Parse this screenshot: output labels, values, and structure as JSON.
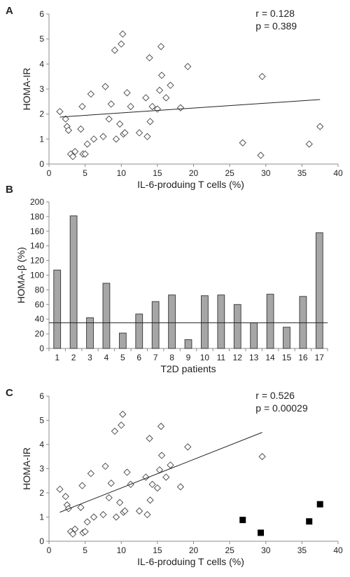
{
  "chart_data": [
    {
      "panel_label": "A",
      "type": "scatter",
      "xlabel": "IL-6-produing T cells (%)",
      "ylabel": "HOMA-IR",
      "xlim": [
        0,
        40
      ],
      "ylim": [
        0,
        6
      ],
      "xticks": [
        0,
        5,
        10,
        15,
        20,
        25,
        30,
        35,
        40
      ],
      "yticks": [
        0,
        1,
        2,
        3,
        4,
        5,
        6
      ],
      "annotation": [
        "r = 0.128",
        "p = 0.389"
      ],
      "marker": "diamond-open",
      "points": [
        [
          1.5,
          2.1
        ],
        [
          2.3,
          1.8
        ],
        [
          2.5,
          1.5
        ],
        [
          2.7,
          1.35
        ],
        [
          3.0,
          0.4
        ],
        [
          3.3,
          0.3
        ],
        [
          3.6,
          0.5
        ],
        [
          4.4,
          1.4
        ],
        [
          4.6,
          2.3
        ],
        [
          4.7,
          0.4
        ],
        [
          5.0,
          0.4
        ],
        [
          5.3,
          0.8
        ],
        [
          5.8,
          2.8
        ],
        [
          6.2,
          1.0
        ],
        [
          7.5,
          1.1
        ],
        [
          7.8,
          3.1
        ],
        [
          8.3,
          1.8
        ],
        [
          8.6,
          2.4
        ],
        [
          9.1,
          4.55
        ],
        [
          9.3,
          1.0
        ],
        [
          9.8,
          1.6
        ],
        [
          10.0,
          4.8
        ],
        [
          10.2,
          5.2
        ],
        [
          10.3,
          1.2
        ],
        [
          10.5,
          1.25
        ],
        [
          10.8,
          2.85
        ],
        [
          11.3,
          2.3
        ],
        [
          12.5,
          1.25
        ],
        [
          13.4,
          2.65
        ],
        [
          13.6,
          1.1
        ],
        [
          13.9,
          4.25
        ],
        [
          14.0,
          1.7
        ],
        [
          14.3,
          2.3
        ],
        [
          15.0,
          2.2
        ],
        [
          15.3,
          2.95
        ],
        [
          15.5,
          4.7
        ],
        [
          15.6,
          3.55
        ],
        [
          16.2,
          2.65
        ],
        [
          16.8,
          3.15
        ],
        [
          18.2,
          2.25
        ],
        [
          19.2,
          3.9
        ],
        [
          26.8,
          0.85
        ],
        [
          29.3,
          0.35
        ],
        [
          29.5,
          3.5
        ],
        [
          36.0,
          0.8
        ],
        [
          37.5,
          1.5
        ]
      ],
      "fit_line": [
        [
          1.5,
          1.88
        ],
        [
          37.5,
          2.58
        ]
      ]
    },
    {
      "panel_label": "B",
      "type": "bar",
      "xlabel": "T2D patients",
      "ylabel": "HOMA-β (%)",
      "ylim": [
        0,
        200
      ],
      "yticks": [
        0,
        20,
        40,
        60,
        80,
        100,
        120,
        140,
        160,
        180,
        200
      ],
      "categories": [
        "1",
        "2",
        "3",
        "4",
        "5",
        "6",
        "7",
        "8",
        "9",
        "10",
        "11",
        "12",
        "13",
        "14",
        "15",
        "16",
        "17"
      ],
      "values": [
        107,
        181,
        42,
        89,
        21,
        47,
        64,
        73,
        12,
        72,
        73,
        60,
        35,
        74,
        29,
        71,
        158
      ],
      "reference_line": 35,
      "bar_color": "#a6a6a6"
    },
    {
      "panel_label": "C",
      "type": "scatter",
      "xlabel": "IL-6-produing T cells (%)",
      "ylabel": "HOMA-IR",
      "xlim": [
        0,
        40
      ],
      "ylim": [
        0,
        6
      ],
      "xticks": [
        0,
        5,
        10,
        15,
        20,
        25,
        30,
        35,
        40
      ],
      "yticks": [
        0,
        1,
        2,
        3,
        4,
        5,
        6
      ],
      "annotation": [
        "r = 0.526",
        "p = 0.00029"
      ],
      "marker": "diamond-open",
      "points": [
        [
          1.5,
          2.15
        ],
        [
          2.3,
          1.85
        ],
        [
          2.5,
          1.5
        ],
        [
          2.7,
          1.35
        ],
        [
          3.0,
          0.4
        ],
        [
          3.3,
          0.3
        ],
        [
          3.6,
          0.5
        ],
        [
          4.4,
          1.4
        ],
        [
          4.6,
          2.3
        ],
        [
          4.7,
          0.35
        ],
        [
          5.0,
          0.4
        ],
        [
          5.3,
          0.8
        ],
        [
          5.8,
          2.8
        ],
        [
          6.2,
          1.0
        ],
        [
          7.5,
          1.1
        ],
        [
          7.8,
          3.1
        ],
        [
          8.3,
          1.8
        ],
        [
          8.6,
          2.4
        ],
        [
          9.1,
          4.55
        ],
        [
          9.3,
          1.0
        ],
        [
          9.8,
          1.6
        ],
        [
          10.0,
          4.8
        ],
        [
          10.2,
          5.25
        ],
        [
          10.3,
          1.2
        ],
        [
          10.5,
          1.25
        ],
        [
          10.8,
          2.85
        ],
        [
          11.3,
          2.35
        ],
        [
          12.5,
          1.25
        ],
        [
          13.4,
          2.65
        ],
        [
          13.6,
          1.1
        ],
        [
          13.9,
          4.25
        ],
        [
          14.0,
          1.7
        ],
        [
          14.3,
          2.35
        ],
        [
          15.0,
          2.2
        ],
        [
          15.3,
          2.95
        ],
        [
          15.5,
          4.75
        ],
        [
          15.6,
          3.55
        ],
        [
          16.2,
          2.65
        ],
        [
          16.8,
          3.15
        ],
        [
          18.2,
          2.25
        ],
        [
          19.2,
          3.9
        ],
        [
          29.5,
          3.5
        ]
      ],
      "highlight_marker": "square-filled",
      "highlight_points": [
        [
          26.8,
          0.88
        ],
        [
          29.3,
          0.35
        ],
        [
          36.0,
          0.82
        ],
        [
          37.5,
          1.53
        ]
      ],
      "fit_line": [
        [
          1.5,
          1.2
        ],
        [
          29.5,
          4.5
        ]
      ]
    }
  ]
}
